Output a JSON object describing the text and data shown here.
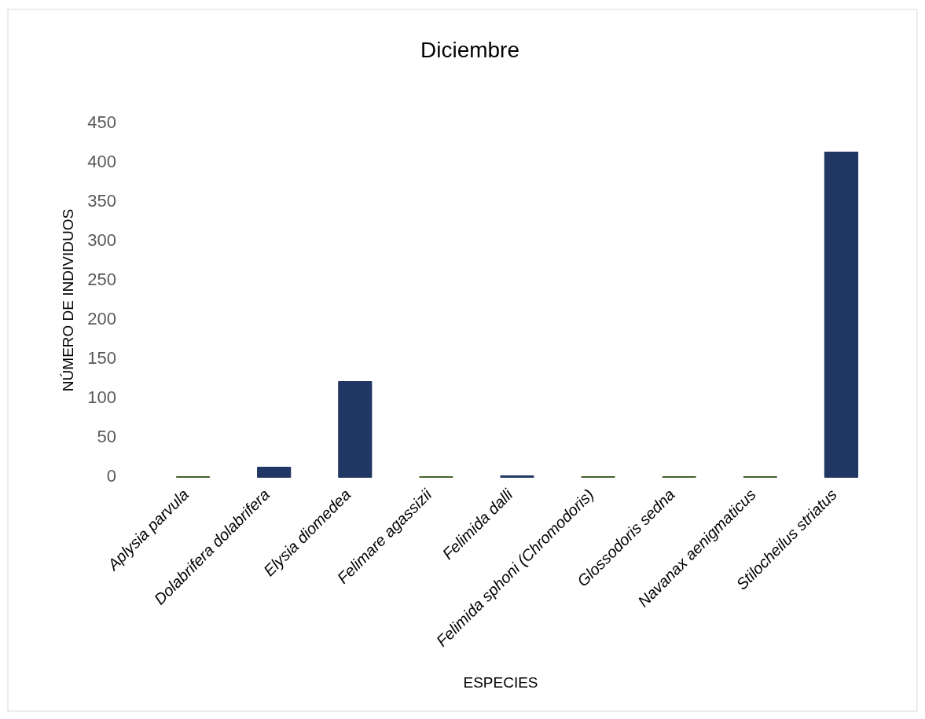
{
  "chart_data": {
    "type": "bar",
    "title": "Diciembre",
    "xlabel": "ESPECIES",
    "ylabel": "NÚMERO DE INDIVIDUOS",
    "categories": [
      "Aplysia parvula",
      "Dolabrifera dolabrifera",
      "Elysia diomedea",
      "Felimare agassizii",
      "Felimida dalli",
      "Felimida sphoni (Chromodoris)",
      "Glossodoris sedna",
      "Navanax aenigmaticus",
      "Stilocheilus striatus"
    ],
    "values": [
      0,
      12,
      121,
      0,
      1,
      0,
      0,
      0,
      413
    ],
    "colors": [
      "#44622a",
      "#213763",
      "#213763",
      "#44622a",
      "#213763",
      "#44622a",
      "#44622a",
      "#44622a",
      "#213763"
    ],
    "ylim": [
      0,
      450
    ],
    "yticks": [
      0,
      50,
      100,
      150,
      200,
      250,
      300,
      350,
      400,
      450
    ]
  }
}
